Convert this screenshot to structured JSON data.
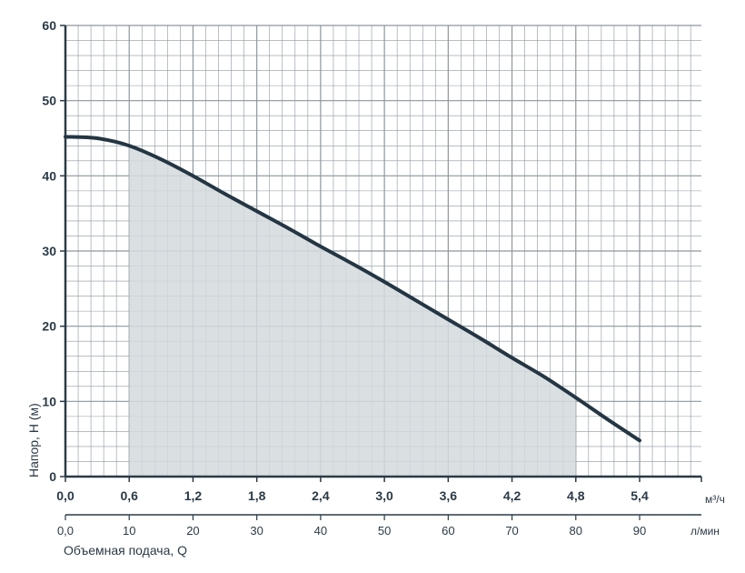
{
  "chart_data": {
    "type": "area",
    "ylabel": "Напор, Н (м)",
    "xlabel": "Объемная подача, Q",
    "x_unit": "м³/ч",
    "x2_unit": "л/мин",
    "xlim": [
      0,
      5.4
    ],
    "ylim": [
      0,
      60
    ],
    "grid": true,
    "y_ticks": [
      "0",
      "10",
      "20",
      "30",
      "40",
      "50",
      "60"
    ],
    "x_ticks": [
      "0,0",
      "0,6",
      "1,2",
      "1,8",
      "2,4",
      "3,0",
      "3,6",
      "4,2",
      "4,8",
      "5,4"
    ],
    "x2_ticks": [
      "0,0",
      "10",
      "20",
      "30",
      "40",
      "50",
      "60",
      "70",
      "80",
      "90"
    ],
    "series": [
      {
        "x": [
          0,
          0.3,
          0.6,
          0.9,
          1.2,
          1.5,
          1.8,
          2.1,
          2.4,
          2.7,
          3.0,
          3.3,
          3.6,
          3.9,
          4.2,
          4.5,
          4.8,
          5.1,
          5.4
        ],
        "y": [
          45.2,
          45.0,
          44.0,
          42.2,
          40.0,
          37.6,
          35.3,
          33.0,
          30.6,
          28.3,
          25.9,
          23.4,
          20.9,
          18.4,
          15.8,
          13.3,
          10.5,
          7.6,
          4.8
        ]
      }
    ],
    "shaded_region": {
      "x": [
        0.6,
        4.8
      ]
    },
    "colors": {
      "curve": "#243643",
      "fill": "#d4d9dd",
      "grid": "#8d979e",
      "axis": "#2b3a46"
    }
  }
}
